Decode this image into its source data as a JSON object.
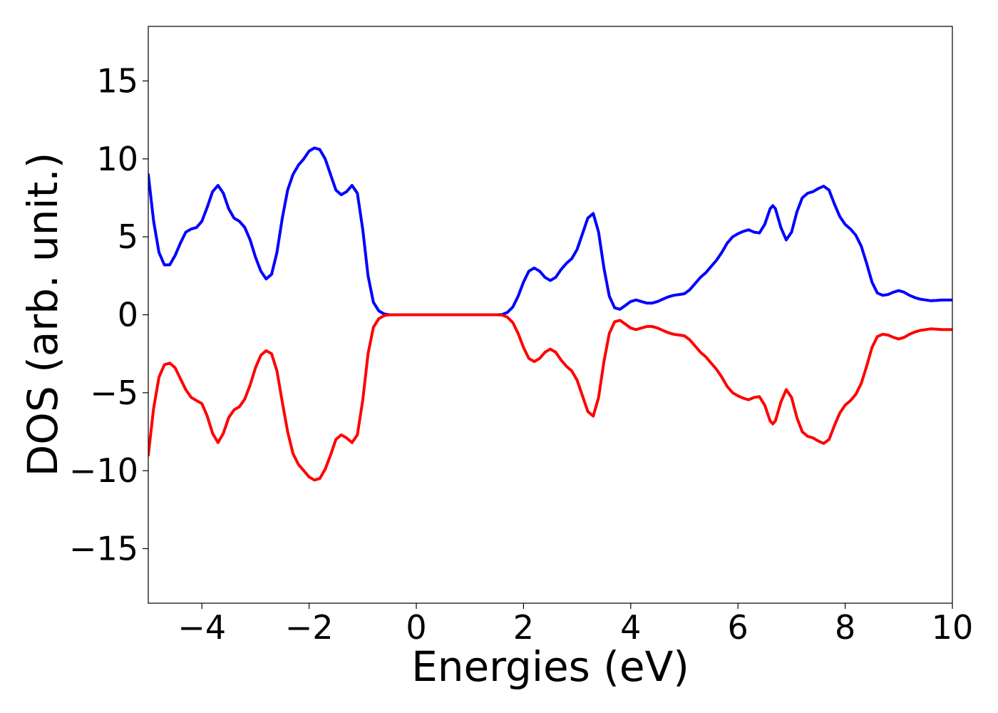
{
  "chart_data": {
    "type": "line",
    "xlabel": "Energies (eV)",
    "ylabel": "DOS (arb. unit.)",
    "xlim": [
      -5,
      10
    ],
    "ylim": [
      -18.5,
      18.5
    ],
    "xticks": [
      -4,
      -2,
      0,
      2,
      4,
      6,
      8,
      10
    ],
    "xtick_labels": [
      "−4",
      "−2",
      "0",
      "2",
      "4",
      "6",
      "8",
      "10"
    ],
    "yticks": [
      15,
      10,
      5,
      0,
      -5,
      -10,
      -15
    ],
    "ytick_labels": [
      "15",
      "10",
      "5",
      "0",
      "−5",
      "−10",
      "−15"
    ],
    "grid": false,
    "legend": "none",
    "series": [
      {
        "color": "#0000ff",
        "points": [
          [
            -5.0,
            9.0
          ],
          [
            -4.9,
            6.0
          ],
          [
            -4.8,
            4.0
          ],
          [
            -4.7,
            3.2
          ],
          [
            -4.6,
            3.2
          ],
          [
            -4.5,
            3.8
          ],
          [
            -4.4,
            4.6
          ],
          [
            -4.3,
            5.3
          ],
          [
            -4.2,
            5.5
          ],
          [
            -4.1,
            5.6
          ],
          [
            -4.0,
            6.0
          ],
          [
            -3.9,
            6.9
          ],
          [
            -3.8,
            7.9
          ],
          [
            -3.7,
            8.3
          ],
          [
            -3.6,
            7.8
          ],
          [
            -3.5,
            6.8
          ],
          [
            -3.4,
            6.2
          ],
          [
            -3.3,
            6.0
          ],
          [
            -3.2,
            5.6
          ],
          [
            -3.1,
            4.8
          ],
          [
            -3.0,
            3.7
          ],
          [
            -2.9,
            2.8
          ],
          [
            -2.8,
            2.3
          ],
          [
            -2.7,
            2.6
          ],
          [
            -2.6,
            4.0
          ],
          [
            -2.5,
            6.2
          ],
          [
            -2.4,
            8.0
          ],
          [
            -2.3,
            9.0
          ],
          [
            -2.2,
            9.6
          ],
          [
            -2.1,
            10.0
          ],
          [
            -2.0,
            10.5
          ],
          [
            -1.9,
            10.7
          ],
          [
            -1.8,
            10.6
          ],
          [
            -1.7,
            10.0
          ],
          [
            -1.6,
            9.0
          ],
          [
            -1.5,
            8.0
          ],
          [
            -1.4,
            7.7
          ],
          [
            -1.3,
            7.9
          ],
          [
            -1.2,
            8.3
          ],
          [
            -1.1,
            7.8
          ],
          [
            -1.0,
            5.5
          ],
          [
            -0.9,
            2.5
          ],
          [
            -0.8,
            0.8
          ],
          [
            -0.7,
            0.25
          ],
          [
            -0.6,
            0.05
          ],
          [
            -0.5,
            0.0
          ],
          [
            0.0,
            0.0
          ],
          [
            0.5,
            0.0
          ],
          [
            1.0,
            0.0
          ],
          [
            1.5,
            0.0
          ],
          [
            1.6,
            0.02
          ],
          [
            1.7,
            0.15
          ],
          [
            1.8,
            0.5
          ],
          [
            1.9,
            1.2
          ],
          [
            2.0,
            2.1
          ],
          [
            2.1,
            2.8
          ],
          [
            2.2,
            3.0
          ],
          [
            2.3,
            2.8
          ],
          [
            2.4,
            2.4
          ],
          [
            2.5,
            2.2
          ],
          [
            2.6,
            2.4
          ],
          [
            2.7,
            2.9
          ],
          [
            2.8,
            3.3
          ],
          [
            2.9,
            3.6
          ],
          [
            3.0,
            4.2
          ],
          [
            3.1,
            5.2
          ],
          [
            3.2,
            6.2
          ],
          [
            3.3,
            6.5
          ],
          [
            3.4,
            5.3
          ],
          [
            3.5,
            3.0
          ],
          [
            3.6,
            1.2
          ],
          [
            3.7,
            0.45
          ],
          [
            3.8,
            0.35
          ],
          [
            3.9,
            0.6
          ],
          [
            4.0,
            0.85
          ],
          [
            4.1,
            0.95
          ],
          [
            4.2,
            0.85
          ],
          [
            4.3,
            0.75
          ],
          [
            4.4,
            0.75
          ],
          [
            4.5,
            0.85
          ],
          [
            4.6,
            1.0
          ],
          [
            4.7,
            1.15
          ],
          [
            4.8,
            1.25
          ],
          [
            4.9,
            1.3
          ],
          [
            5.0,
            1.35
          ],
          [
            5.1,
            1.6
          ],
          [
            5.2,
            2.0
          ],
          [
            5.3,
            2.4
          ],
          [
            5.4,
            2.7
          ],
          [
            5.5,
            3.1
          ],
          [
            5.6,
            3.5
          ],
          [
            5.7,
            4.0
          ],
          [
            5.8,
            4.6
          ],
          [
            5.9,
            5.0
          ],
          [
            6.0,
            5.2
          ],
          [
            6.1,
            5.35
          ],
          [
            6.2,
            5.45
          ],
          [
            6.3,
            5.3
          ],
          [
            6.4,
            5.25
          ],
          [
            6.5,
            5.8
          ],
          [
            6.6,
            6.8
          ],
          [
            6.65,
            7.0
          ],
          [
            6.7,
            6.8
          ],
          [
            6.8,
            5.6
          ],
          [
            6.9,
            4.8
          ],
          [
            7.0,
            5.3
          ],
          [
            7.1,
            6.6
          ],
          [
            7.2,
            7.5
          ],
          [
            7.3,
            7.8
          ],
          [
            7.4,
            7.9
          ],
          [
            7.5,
            8.1
          ],
          [
            7.6,
            8.25
          ],
          [
            7.7,
            8.0
          ],
          [
            7.8,
            7.1
          ],
          [
            7.9,
            6.3
          ],
          [
            8.0,
            5.8
          ],
          [
            8.1,
            5.5
          ],
          [
            8.2,
            5.1
          ],
          [
            8.3,
            4.4
          ],
          [
            8.4,
            3.3
          ],
          [
            8.5,
            2.1
          ],
          [
            8.6,
            1.4
          ],
          [
            8.7,
            1.25
          ],
          [
            8.8,
            1.3
          ],
          [
            8.9,
            1.45
          ],
          [
            9.0,
            1.55
          ],
          [
            9.1,
            1.45
          ],
          [
            9.2,
            1.25
          ],
          [
            9.3,
            1.1
          ],
          [
            9.4,
            1.0
          ],
          [
            9.5,
            0.95
          ],
          [
            9.6,
            0.9
          ],
          [
            9.7,
            0.92
          ],
          [
            9.8,
            0.95
          ],
          [
            9.9,
            0.95
          ],
          [
            10.0,
            0.95
          ]
        ]
      },
      {
        "color": "#ff0000",
        "points": [
          [
            -5.0,
            -9.0
          ],
          [
            -4.9,
            -6.0
          ],
          [
            -4.8,
            -4.0
          ],
          [
            -4.7,
            -3.2
          ],
          [
            -4.6,
            -3.1
          ],
          [
            -4.5,
            -3.4
          ],
          [
            -4.4,
            -4.1
          ],
          [
            -4.3,
            -4.8
          ],
          [
            -4.2,
            -5.3
          ],
          [
            -4.1,
            -5.5
          ],
          [
            -4.0,
            -5.7
          ],
          [
            -3.9,
            -6.5
          ],
          [
            -3.8,
            -7.6
          ],
          [
            -3.7,
            -8.2
          ],
          [
            -3.6,
            -7.6
          ],
          [
            -3.5,
            -6.6
          ],
          [
            -3.4,
            -6.1
          ],
          [
            -3.3,
            -5.9
          ],
          [
            -3.2,
            -5.4
          ],
          [
            -3.1,
            -4.5
          ],
          [
            -3.0,
            -3.4
          ],
          [
            -2.9,
            -2.6
          ],
          [
            -2.8,
            -2.3
          ],
          [
            -2.7,
            -2.5
          ],
          [
            -2.6,
            -3.6
          ],
          [
            -2.5,
            -5.6
          ],
          [
            -2.4,
            -7.5
          ],
          [
            -2.3,
            -8.9
          ],
          [
            -2.2,
            -9.6
          ],
          [
            -2.1,
            -10.0
          ],
          [
            -2.0,
            -10.4
          ],
          [
            -1.9,
            -10.6
          ],
          [
            -1.8,
            -10.5
          ],
          [
            -1.7,
            -9.9
          ],
          [
            -1.6,
            -9.0
          ],
          [
            -1.5,
            -8.0
          ],
          [
            -1.4,
            -7.7
          ],
          [
            -1.3,
            -7.9
          ],
          [
            -1.2,
            -8.2
          ],
          [
            -1.1,
            -7.7
          ],
          [
            -1.0,
            -5.5
          ],
          [
            -0.9,
            -2.5
          ],
          [
            -0.8,
            -0.8
          ],
          [
            -0.7,
            -0.25
          ],
          [
            -0.6,
            -0.05
          ],
          [
            -0.5,
            0.0
          ],
          [
            0.0,
            0.0
          ],
          [
            0.5,
            0.0
          ],
          [
            1.0,
            0.0
          ],
          [
            1.5,
            0.0
          ],
          [
            1.6,
            -0.02
          ],
          [
            1.7,
            -0.15
          ],
          [
            1.8,
            -0.5
          ],
          [
            1.9,
            -1.2
          ],
          [
            2.0,
            -2.1
          ],
          [
            2.1,
            -2.8
          ],
          [
            2.2,
            -3.0
          ],
          [
            2.3,
            -2.8
          ],
          [
            2.4,
            -2.4
          ],
          [
            2.5,
            -2.2
          ],
          [
            2.6,
            -2.4
          ],
          [
            2.7,
            -2.9
          ],
          [
            2.8,
            -3.3
          ],
          [
            2.9,
            -3.6
          ],
          [
            3.0,
            -4.2
          ],
          [
            3.1,
            -5.2
          ],
          [
            3.2,
            -6.2
          ],
          [
            3.3,
            -6.5
          ],
          [
            3.4,
            -5.3
          ],
          [
            3.5,
            -3.0
          ],
          [
            3.6,
            -1.2
          ],
          [
            3.7,
            -0.45
          ],
          [
            3.8,
            -0.35
          ],
          [
            3.9,
            -0.6
          ],
          [
            4.0,
            -0.85
          ],
          [
            4.1,
            -0.95
          ],
          [
            4.2,
            -0.85
          ],
          [
            4.3,
            -0.75
          ],
          [
            4.4,
            -0.75
          ],
          [
            4.5,
            -0.85
          ],
          [
            4.6,
            -1.0
          ],
          [
            4.7,
            -1.15
          ],
          [
            4.8,
            -1.25
          ],
          [
            4.9,
            -1.3
          ],
          [
            5.0,
            -1.35
          ],
          [
            5.1,
            -1.6
          ],
          [
            5.2,
            -2.0
          ],
          [
            5.3,
            -2.4
          ],
          [
            5.4,
            -2.7
          ],
          [
            5.5,
            -3.1
          ],
          [
            5.6,
            -3.5
          ],
          [
            5.7,
            -4.0
          ],
          [
            5.8,
            -4.6
          ],
          [
            5.9,
            -5.0
          ],
          [
            6.0,
            -5.2
          ],
          [
            6.1,
            -5.35
          ],
          [
            6.2,
            -5.45
          ],
          [
            6.3,
            -5.3
          ],
          [
            6.4,
            -5.25
          ],
          [
            6.5,
            -5.8
          ],
          [
            6.6,
            -6.8
          ],
          [
            6.65,
            -7.0
          ],
          [
            6.7,
            -6.8
          ],
          [
            6.8,
            -5.6
          ],
          [
            6.9,
            -4.8
          ],
          [
            7.0,
            -5.3
          ],
          [
            7.1,
            -6.6
          ],
          [
            7.2,
            -7.5
          ],
          [
            7.3,
            -7.8
          ],
          [
            7.4,
            -7.9
          ],
          [
            7.5,
            -8.1
          ],
          [
            7.6,
            -8.25
          ],
          [
            7.7,
            -8.0
          ],
          [
            7.8,
            -7.1
          ],
          [
            7.9,
            -6.3
          ],
          [
            8.0,
            -5.8
          ],
          [
            8.1,
            -5.5
          ],
          [
            8.2,
            -5.1
          ],
          [
            8.3,
            -4.4
          ],
          [
            8.4,
            -3.3
          ],
          [
            8.5,
            -2.1
          ],
          [
            8.6,
            -1.4
          ],
          [
            8.7,
            -1.25
          ],
          [
            8.8,
            -1.3
          ],
          [
            8.9,
            -1.45
          ],
          [
            9.0,
            -1.55
          ],
          [
            9.1,
            -1.45
          ],
          [
            9.2,
            -1.25
          ],
          [
            9.3,
            -1.1
          ],
          [
            9.4,
            -1.0
          ],
          [
            9.5,
            -0.95
          ],
          [
            9.6,
            -0.9
          ],
          [
            9.7,
            -0.92
          ],
          [
            9.8,
            -0.95
          ],
          [
            9.9,
            -0.95
          ],
          [
            10.0,
            -0.95
          ]
        ]
      }
    ]
  }
}
